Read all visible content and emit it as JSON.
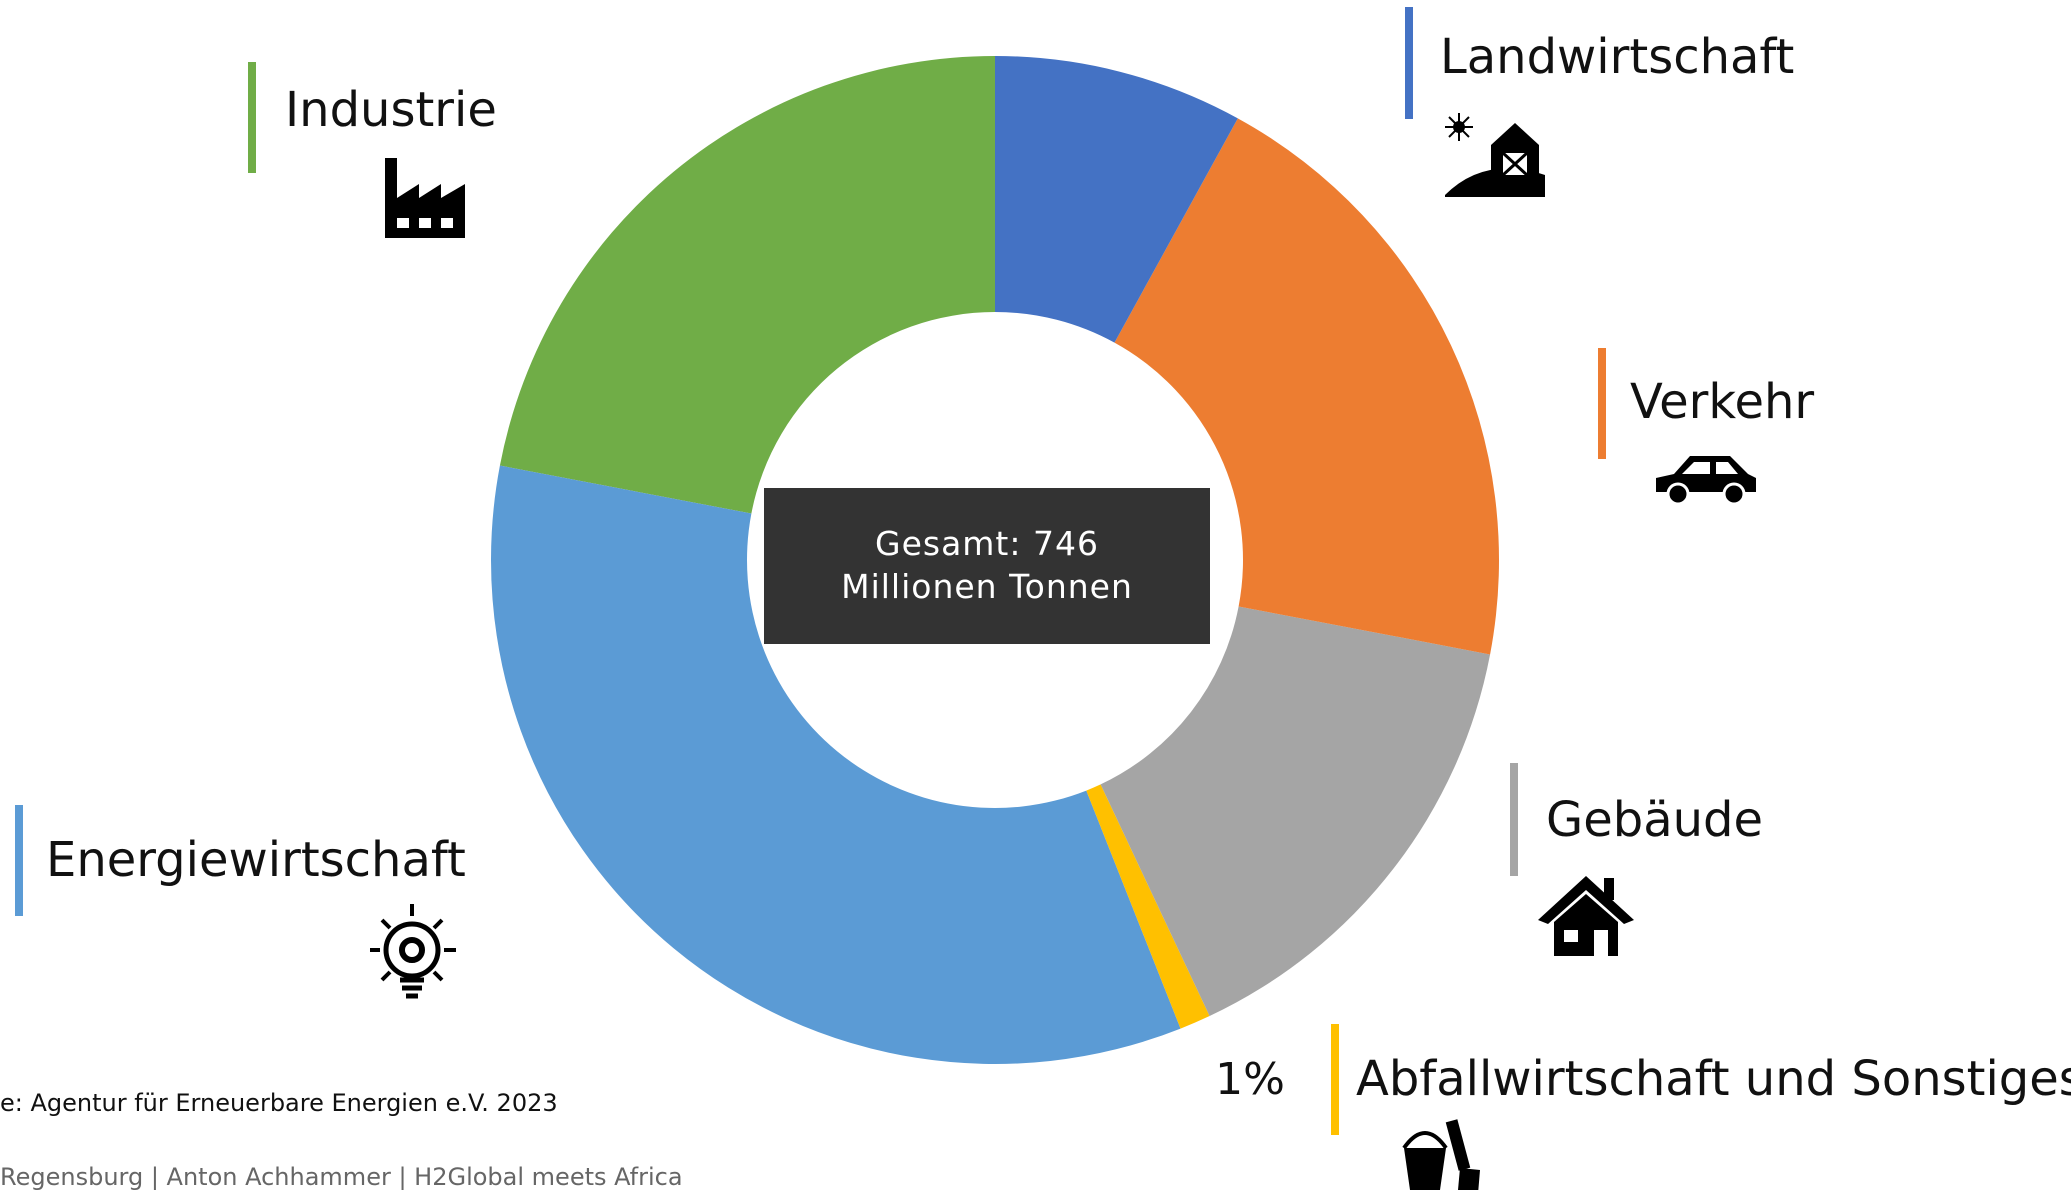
{
  "chart_data": {
    "type": "pie",
    "categories": [
      "Landwirtschaft",
      "Verkehr",
      "Gebäude",
      "Abfallwirtschaft und Sonstiges",
      "Energiewirtschaft",
      "Industrie"
    ],
    "values": [
      8,
      20,
      15,
      1,
      34,
      22
    ],
    "value_labels": [
      "8%",
      "20%",
      "15%",
      "1%",
      "34%",
      "22%"
    ],
    "colors": [
      "#4472c4",
      "#ed7d31",
      "#a5a5a5",
      "#ffc000",
      "#5b9bd5",
      "#70ad47"
    ],
    "annotation": "Gesamt: 746 Millionen Tonnen",
    "source": "e: Agentur für Erneuerbare Energien e.V. 2023",
    "footer": "Regensburg |  Anton Achhammer | H2Global meets Africa"
  }
}
